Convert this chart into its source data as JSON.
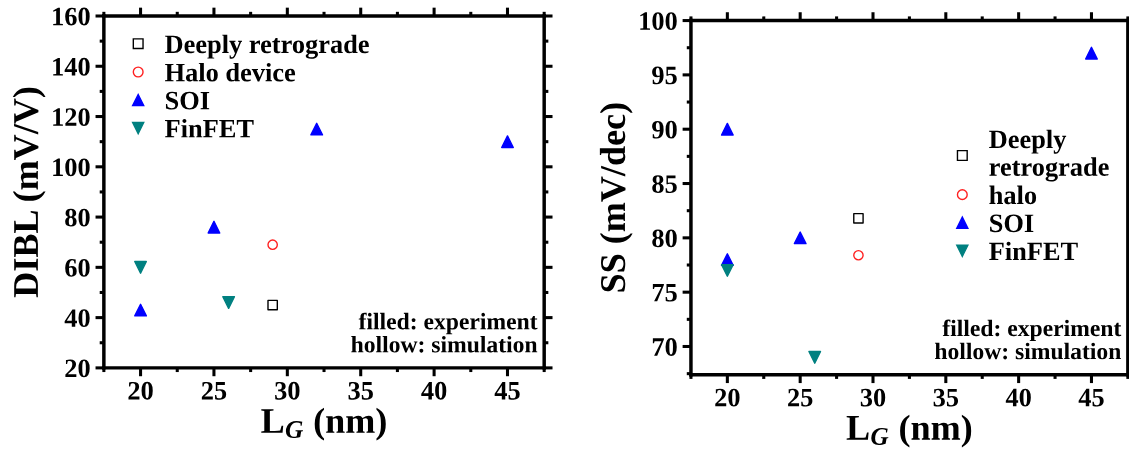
{
  "chart_data": [
    {
      "type": "scatter",
      "xlabel": "L$_{G}$ (nm)",
      "ylabel": "DIBL (mV/V)",
      "xlim": [
        17.5,
        47.5
      ],
      "ylim": [
        20,
        160
      ],
      "xticks": [
        20,
        25,
        30,
        35,
        40,
        45
      ],
      "yticks": [
        20,
        40,
        60,
        80,
        100,
        120,
        140,
        160
      ],
      "legend": "top left",
      "grid": false,
      "annotations": [
        "filled: experiment\nhollow: simulation"
      ],
      "series": [
        {
          "name": "Deeply retrograde",
          "color": "#000000",
          "marker": "square",
          "x": [
            29
          ],
          "values": [
            45
          ]
        },
        {
          "name": "Halo device",
          "color": "#ff2020",
          "marker": "circle",
          "x": [
            29
          ],
          "values": [
            69
          ]
        },
        {
          "name": "SOI",
          "color": "#0000ff",
          "marker": "triangle",
          "x": [
            20,
            25,
            32,
            45
          ],
          "values": [
            43,
            76,
            115,
            110
          ]
        },
        {
          "name": "FinFET",
          "color": "#008080",
          "marker": "triangle_down",
          "x": [
            20,
            26
          ],
          "values": [
            60,
            46
          ]
        }
      ]
    },
    {
      "type": "scatter",
      "xlabel": "L$_{G}$ (nm)",
      "ylabel": "SS (mV/dec)",
      "xlim": [
        17.5,
        47.5
      ],
      "ylim": [
        67.4,
        100
      ],
      "xticks": [
        20,
        25,
        30,
        35,
        40,
        45
      ],
      "yticks": [
        70,
        75,
        80,
        85,
        90,
        95,
        100
      ],
      "legend": "center right",
      "grid": false,
      "annotations": [
        "filled: experiment\nhollow: simulation"
      ],
      "series": [
        {
          "name": "Deeply\nretrograde",
          "color": "#000000",
          "marker": "square",
          "x": [
            29
          ],
          "values": [
            81.8
          ]
        },
        {
          "name": "halo",
          "color": "#ff2020",
          "marker": "circle",
          "x": [
            29
          ],
          "values": [
            78.4
          ]
        },
        {
          "name": "SOI",
          "color": "#0000ff",
          "marker": "triangle",
          "x": [
            20,
            20,
            25,
            45
          ],
          "values": [
            90,
            78,
            80,
            97
          ]
        },
        {
          "name": "FinFET",
          "color": "#008080",
          "marker": "triangle_down",
          "x": [
            20,
            26
          ],
          "values": [
            77,
            69
          ]
        }
      ]
    }
  ]
}
